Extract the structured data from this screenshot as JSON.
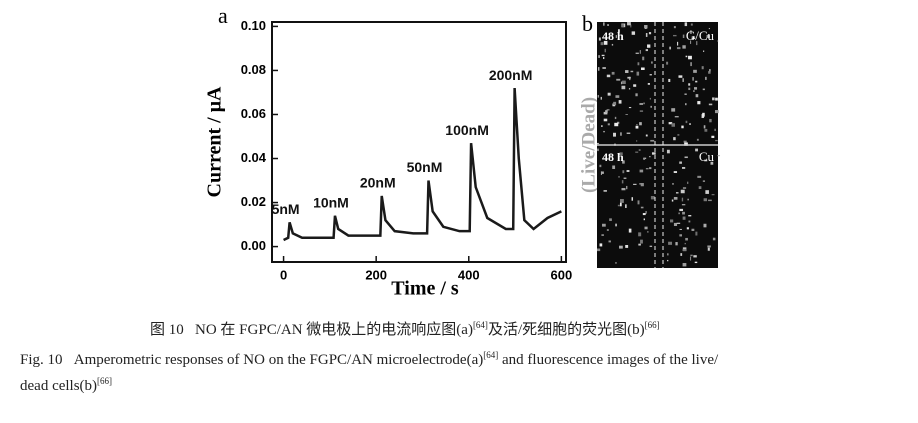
{
  "chart_data": {
    "type": "line",
    "panel_label": "a",
    "x_label": "Time / s",
    "y_label": "Current / μA",
    "x": [
      0,
      10,
      13,
      20,
      40,
      80,
      108,
      111,
      118,
      140,
      180,
      209,
      212,
      220,
      240,
      280,
      310,
      313,
      322,
      345,
      380,
      402,
      405,
      415,
      440,
      480,
      496,
      499,
      508,
      520,
      540,
      570,
      600
    ],
    "series": [
      {
        "color": "#1a1a1a",
        "values": [
          0.003,
          0.004,
          0.011,
          0.006,
          0.004,
          0.004,
          0.004,
          0.014,
          0.008,
          0.005,
          0.005,
          0.005,
          0.023,
          0.012,
          0.007,
          0.006,
          0.006,
          0.03,
          0.016,
          0.009,
          0.007,
          0.007,
          0.047,
          0.027,
          0.013,
          0.008,
          0.008,
          0.072,
          0.04,
          0.012,
          0.008,
          0.013,
          0.016
        ]
      }
    ],
    "annotations": [
      "5nM",
      "10nM",
      "20nM",
      "50nM",
      "100nM",
      "200nM"
    ],
    "xlim": [
      -25,
      610
    ],
    "ylim": [
      -0.007,
      0.102
    ],
    "xticks": [
      0,
      200,
      400,
      600
    ],
    "yticks": [
      {
        "value": 0,
        "label": "0.00"
      },
      {
        "value": 0.02,
        "label": "0.02"
      },
      {
        "value": 0.04,
        "label": "0.04"
      },
      {
        "value": 0.06,
        "label": "0.06"
      },
      {
        "value": 0.08,
        "label": "0.08"
      },
      {
        "value": 0.1,
        "label": "0.10"
      }
    ]
  },
  "panel_b": {
    "label": "b",
    "side_label": "(Live/Dead)",
    "images": [
      {
        "time": "48 h",
        "name": "G/Cu"
      },
      {
        "time": "48 h",
        "name": "Cu"
      }
    ]
  },
  "caption": {
    "zh": {
      "fig": "图 10",
      "text": "NO 在 FGPC/AN 微电极上的电流响应图(a)",
      "ref1": "[64]",
      "text2": "及活/死细胞的荧光图(b)",
      "ref2": "[66]"
    },
    "en": {
      "fig": "Fig. 10",
      "text": "Amperometric responses of NO on the FGPC/AN microelectrode(a)",
      "ref1": "[64]",
      "text2": "and fluorescence images of the live/",
      "text3": "dead cells(b)",
      "ref2": "[66]"
    }
  }
}
